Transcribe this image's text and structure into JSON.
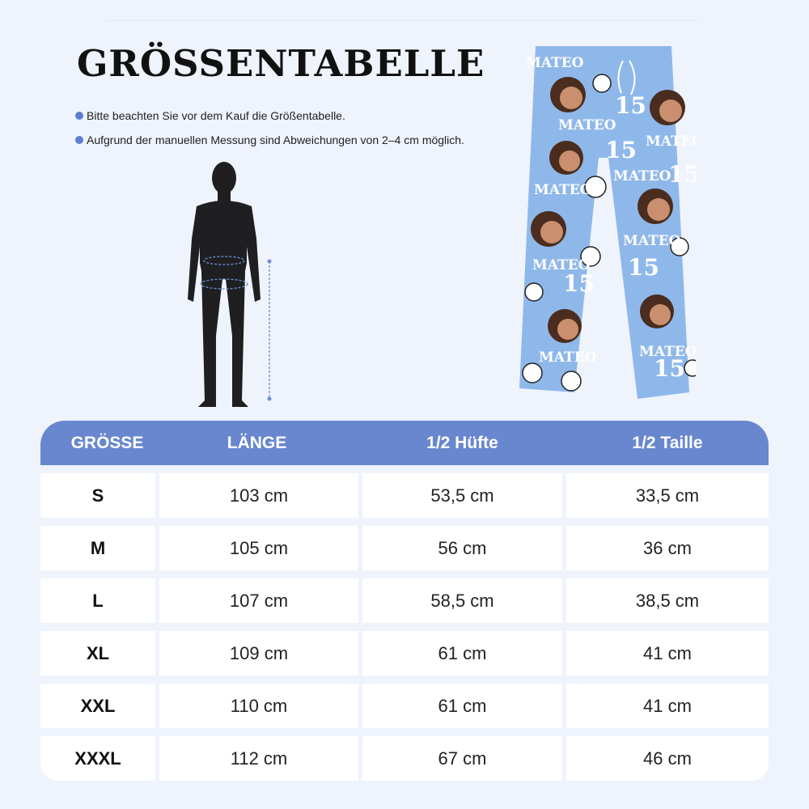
{
  "title": "GRÖSSENTABELLE",
  "notes": [
    "Bitte beachten Sie vor dem Kauf die Größentabelle.",
    "Aufgrund der manuellen Messung sind Abweichungen von 2–4 cm möglich."
  ],
  "colors": {
    "accent": "#6987cf",
    "background": "#eff3fc",
    "pants": "#8fb8ea"
  },
  "product_print": {
    "name": "MATEO",
    "number": "15"
  },
  "table": {
    "headers": [
      "GRÖSSE",
      "LÄNGE",
      "1/2 Hüfte",
      "1/2 Taille"
    ],
    "rows": [
      [
        "S",
        "103 cm",
        "53,5 cm",
        "33,5 cm"
      ],
      [
        "M",
        "105 cm",
        "56 cm",
        "36 cm"
      ],
      [
        "L",
        "107 cm",
        "58,5 cm",
        "38,5 cm"
      ],
      [
        "XL",
        "109 cm",
        "61 cm",
        "41 cm"
      ],
      [
        "XXL",
        "110 cm",
        "61 cm",
        "41 cm"
      ],
      [
        "XXXL",
        "112 cm",
        "67 cm",
        "46 cm"
      ]
    ]
  }
}
